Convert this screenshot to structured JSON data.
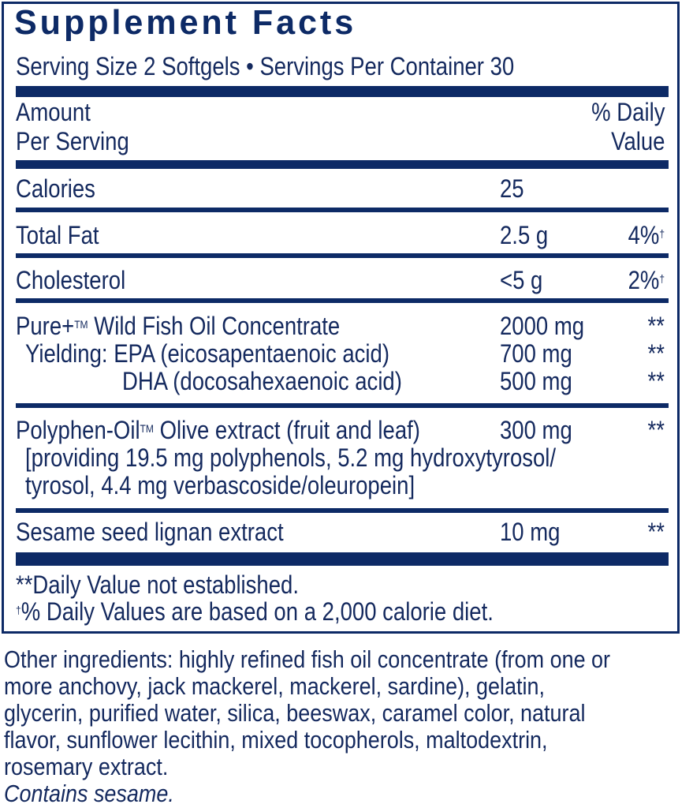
{
  "title": "Supplement Facts",
  "serving_line": "Serving Size 2 Softgels • Servings Per Container 30",
  "header": {
    "amount_1": "Amount",
    "amount_2": "Per Serving",
    "dv_1": "% Daily",
    "dv_2": "Value"
  },
  "rows": [
    {
      "name": "Calories",
      "amount": "25",
      "dv": ""
    },
    {
      "name": "Total Fat",
      "amount": "2.5 g",
      "dv": "4%",
      "dv_mark": "†"
    },
    {
      "name": "Cholesterol",
      "amount": "<5 g",
      "dv": "2%",
      "dv_mark": "†"
    },
    {
      "name": "Pure+",
      "name_mark": "TM",
      "name_rest": " Wild Fish Oil Concentrate",
      "amount": "2000 mg",
      "dv": "**"
    },
    {
      "name": "Yielding: EPA (eicosapentaenoic acid)",
      "amount": "700 mg",
      "dv": "**"
    },
    {
      "name": "DHA (docosahexaenoic acid)",
      "amount": "500 mg",
      "dv": "**"
    },
    {
      "name": "Polyphen-Oil",
      "name_mark": "TM",
      "name_rest": " Olive extract (fruit and leaf)",
      "amount": "300 mg",
      "dv": "**",
      "detail_1": "[providing 19.5 mg polyphenols, 5.2 mg hydroxytyrosol/",
      "detail_2": "tyrosol, 4.4 mg verbascoside/oleuropein]"
    },
    {
      "name": "Sesame seed lignan extract",
      "amount": "10 mg",
      "dv": "**"
    }
  ],
  "footnotes": {
    "dv_not_established": "**Daily Value not established.",
    "dagger": "†",
    "dv_basis": "% Daily Values are based on a 2,000 calorie diet."
  },
  "other_ingredients": [
    "Other ingredients: highly refined fish oil concentrate (from one or",
    "more anchovy, jack mackerel, mackerel, sardine), gelatin,",
    "glycerin, purified water, silica, beeswax, caramel color, natural",
    "flavor, sunflower lecithin, mixed tocopherols, maltodextrin,",
    "rosemary extract."
  ],
  "allergen": "Contains sesame.",
  "colors": {
    "navy": "#0d2a66",
    "text": "#14295e"
  }
}
